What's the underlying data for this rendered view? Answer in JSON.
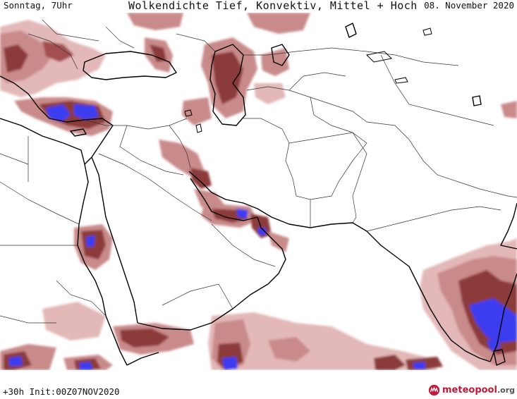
{
  "header": {
    "day_time": "Sonntag, 7Uhr",
    "title": "Wolkendichte  Tief, Konvektiv, Mittel + Hoch",
    "date": "08. November 2020"
  },
  "footer": {
    "run_info": "+30h Init:00Z07NOV2020",
    "brand_main": "meteopool",
    "brand_tld": ".org"
  },
  "colors": {
    "cloud_light": "#e3b8b8",
    "cloud_mid": "#c98a8a",
    "cloud_dark": "#8c3a3a",
    "convective": "#3c3cf0",
    "coastline": "#000000",
    "border": "#333333",
    "brand": "#c01a3a"
  },
  "icons": {
    "logo": "meteopool-logo-icon"
  }
}
